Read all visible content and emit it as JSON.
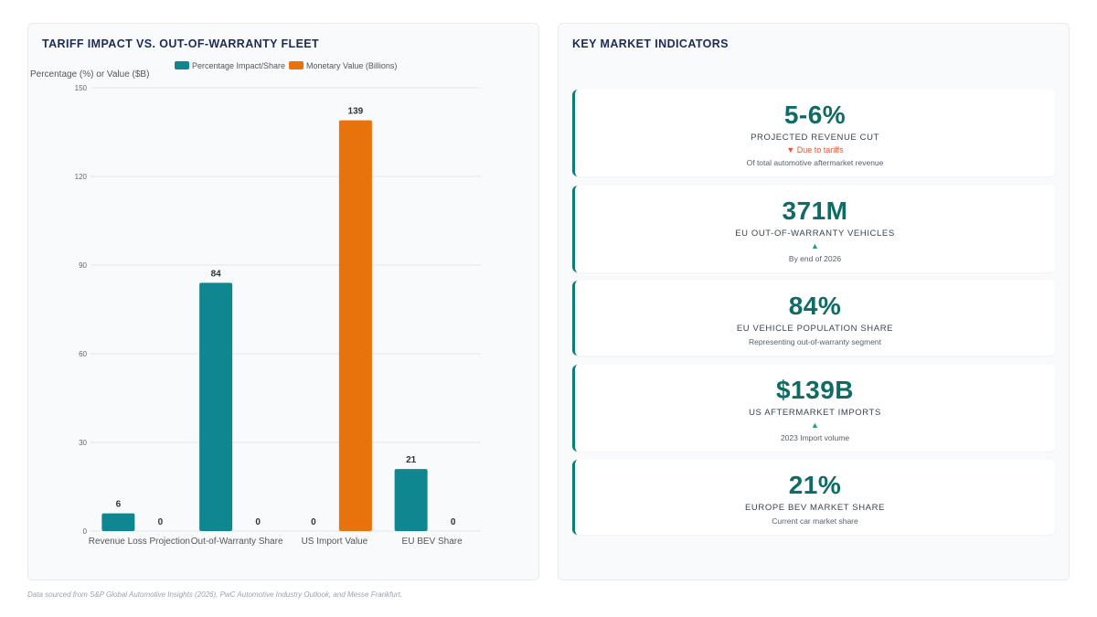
{
  "chart_panel": {
    "title": "TARIFF IMPACT VS. OUT-OF-WARRANTY FLEET"
  },
  "chart_data": {
    "type": "bar",
    "title": "TARIFF IMPACT VS. OUT-OF-WARRANTY FLEET",
    "ylabel": "Percentage (%) or Value ($B)",
    "xlabel": "",
    "ylim": [
      0,
      150
    ],
    "yticks": [
      0,
      30,
      60,
      90,
      120,
      150
    ],
    "categories": [
      "Revenue Loss Projection",
      "Out-of-Warranty Share",
      "US Import Value",
      "EU BEV Share"
    ],
    "series": [
      {
        "name": "Percentage Impact/Share",
        "values": [
          6,
          84,
          0,
          21
        ],
        "color": "#0f8690"
      },
      {
        "name": "Monetary Value (Billions)",
        "values": [
          0,
          0,
          139,
          0
        ],
        "color": "#e8720c"
      }
    ],
    "legend_position": "top",
    "grid": true
  },
  "kpi_panel": {
    "title": "KEY MARKET INDICATORS",
    "cards": [
      {
        "value": "5-6%",
        "label": "PROJECTED REVENUE CUT",
        "trend": "▼ Due to tariffs",
        "trend_dir": "down",
        "note": "Of total automotive aftermarket revenue"
      },
      {
        "value": "371M",
        "label": "EU OUT-OF-WARRANTY VEHICLES",
        "trend": "▲",
        "trend_dir": "up",
        "note": "By end of 2026"
      },
      {
        "value": "84%",
        "label": "EU VEHICLE POPULATION SHARE",
        "trend": "",
        "trend_dir": "",
        "note": "Representing out-of-warranty segment"
      },
      {
        "value": "$139B",
        "label": "US AFTERMARKET IMPORTS",
        "trend": "▲",
        "trend_dir": "up",
        "note": "2023 Import volume"
      },
      {
        "value": "21%",
        "label": "EUROPE BEV MARKET SHARE",
        "trend": "",
        "trend_dir": "",
        "note": "Current car market share"
      }
    ]
  },
  "footer": {
    "source": "Data sourced from S&P Global Automotive Insights (2026), PwC Automotive Industry Outlook, and Messe Frankfurt."
  }
}
